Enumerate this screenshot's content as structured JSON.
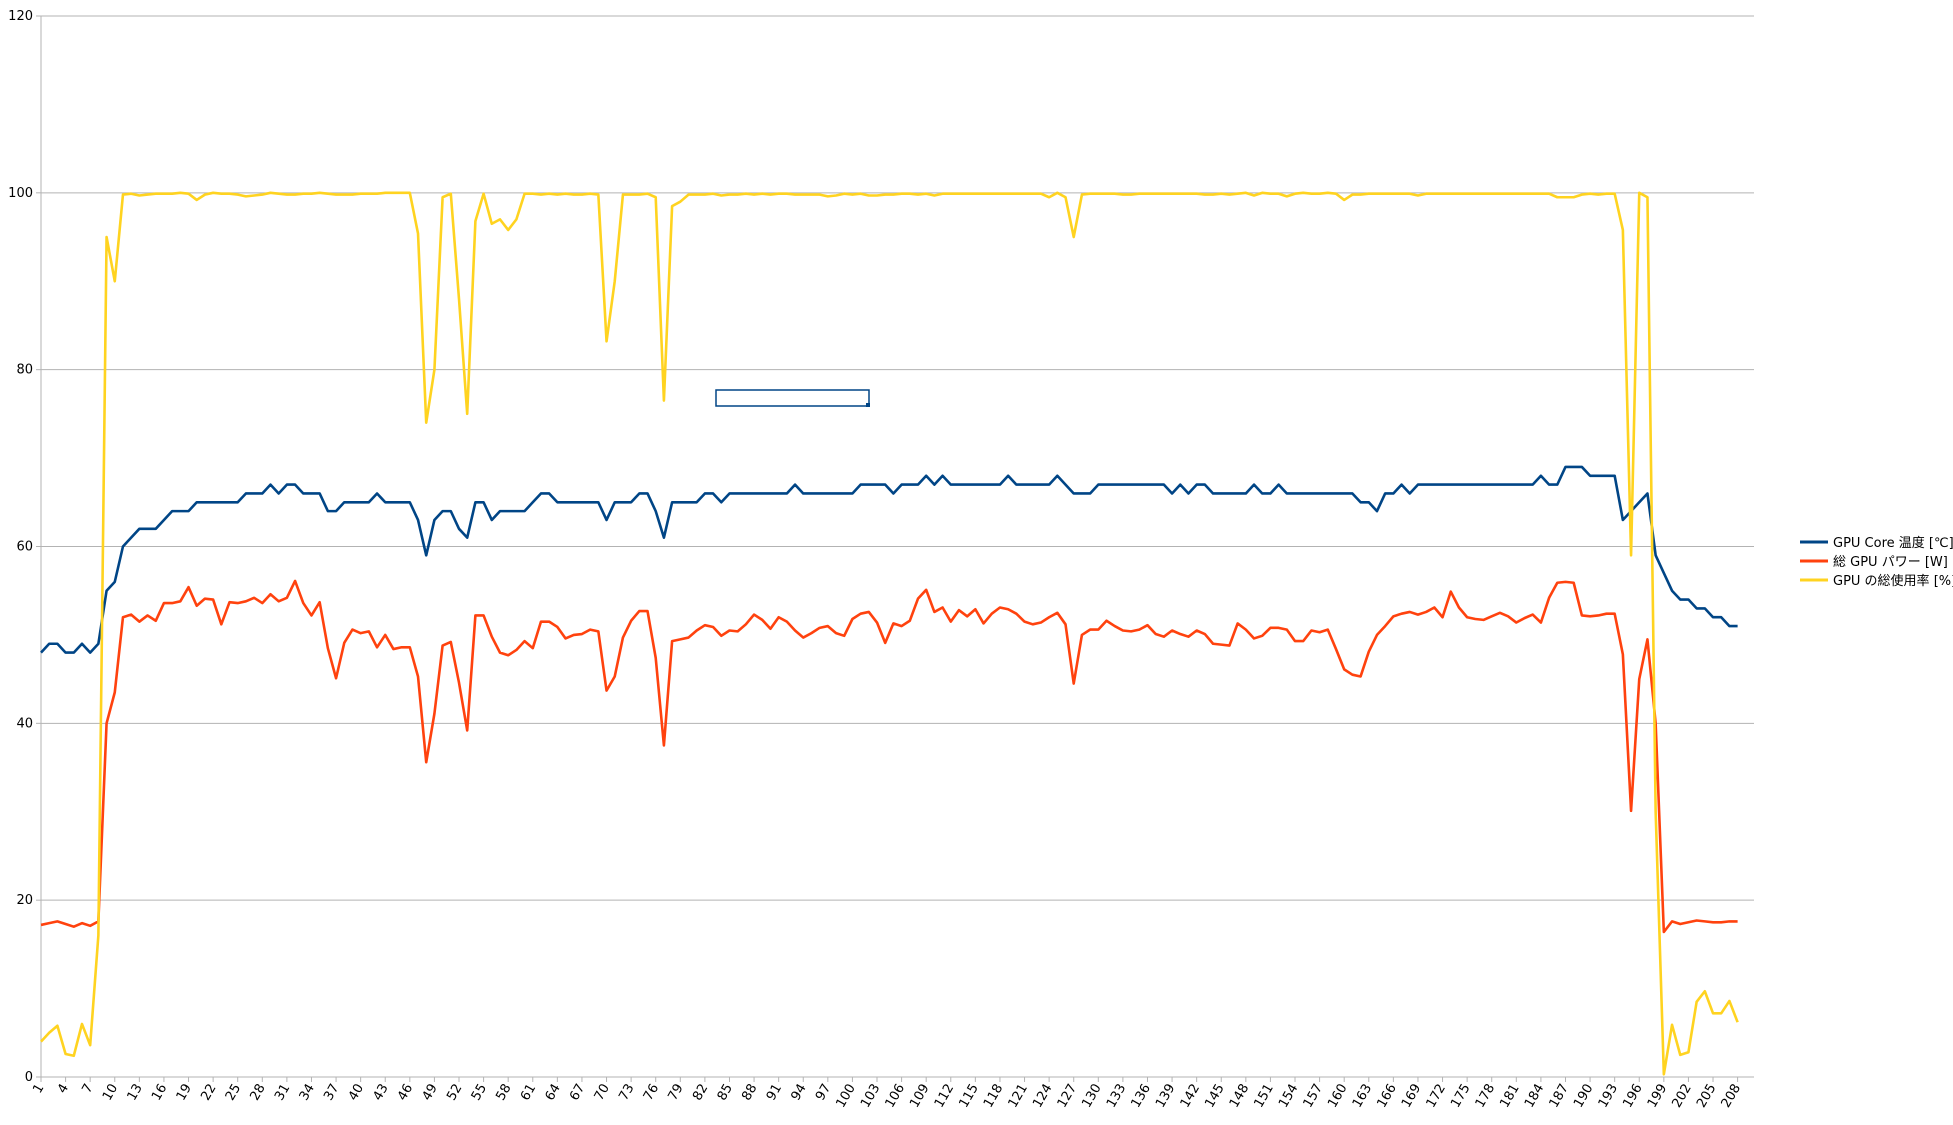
{
  "chart_data": {
    "type": "line",
    "x": [
      1,
      2,
      3,
      4,
      5,
      6,
      7,
      8,
      9,
      10,
      11,
      12,
      13,
      14,
      15,
      16,
      17,
      18,
      19,
      20,
      21,
      22,
      23,
      24,
      25,
      26,
      27,
      28,
      29,
      30,
      31,
      32,
      33,
      34,
      35,
      36,
      37,
      38,
      39,
      40,
      41,
      42,
      43,
      44,
      45,
      46,
      47,
      48,
      49,
      50,
      51,
      52,
      53,
      54,
      55,
      56,
      57,
      58,
      59,
      60,
      61,
      62,
      63,
      64,
      65,
      66,
      67,
      68,
      69,
      70,
      71,
      72,
      73,
      74,
      75,
      76,
      77,
      78,
      79,
      80,
      81,
      82,
      83,
      84,
      85,
      86,
      87,
      88,
      89,
      90,
      91,
      92,
      93,
      94,
      95,
      96,
      97,
      98,
      99,
      100,
      101,
      102,
      103,
      104,
      105,
      106,
      107,
      108,
      109,
      110,
      111,
      112,
      113,
      114,
      115,
      116,
      117,
      118,
      119,
      120,
      121,
      122,
      123,
      124,
      125,
      126,
      127,
      128,
      129,
      130,
      131,
      132,
      133,
      134,
      135,
      136,
      137,
      138,
      139,
      140,
      141,
      142,
      143,
      144,
      145,
      146,
      147,
      148,
      149,
      150,
      151,
      152,
      153,
      154,
      155,
      156,
      157,
      158,
      159,
      160,
      161,
      162,
      163,
      164,
      165,
      166,
      167,
      168,
      169,
      170,
      171,
      172,
      173,
      174,
      175,
      176,
      177,
      178,
      179,
      180,
      181,
      182,
      183,
      184,
      185,
      186,
      187,
      188,
      189,
      190,
      191,
      192,
      193,
      194,
      195,
      196,
      197,
      198,
      199,
      200,
      201,
      202,
      203,
      204,
      205,
      206,
      207,
      208
    ],
    "series": [
      {
        "name": "GPU Core  温度 [℃]",
        "color": "#004586",
        "values": [
          48,
          49,
          49,
          48,
          48,
          49,
          48,
          49,
          55,
          56,
          60,
          61,
          62,
          62,
          62,
          63,
          64,
          64,
          64,
          65,
          65,
          65,
          65,
          65,
          65,
          66,
          66,
          66,
          67,
          66,
          67,
          67,
          66,
          66,
          66,
          64,
          64,
          65,
          65,
          65,
          65,
          66,
          65,
          65,
          65,
          65,
          63,
          59,
          63,
          64,
          64,
          62,
          61,
          65,
          65,
          63,
          64,
          64,
          64,
          64,
          65,
          66,
          66,
          65,
          65,
          65,
          65,
          65,
          65,
          63,
          65,
          65,
          65,
          66,
          66,
          64,
          61,
          65,
          65,
          65,
          65,
          66,
          66,
          65,
          66,
          66,
          66,
          66,
          66,
          66,
          66,
          66,
          67,
          66,
          66,
          66,
          66,
          66,
          66,
          66,
          67,
          67,
          67,
          67,
          66,
          67,
          67,
          67,
          68,
          67,
          68,
          67,
          67,
          67,
          67,
          67,
          67,
          67,
          68,
          67,
          67,
          67,
          67,
          67,
          68,
          67,
          66,
          66,
          66,
          67,
          67,
          67,
          67,
          67,
          67,
          67,
          67,
          67,
          66,
          67,
          66,
          67,
          67,
          66,
          66,
          66,
          66,
          66,
          67,
          66,
          66,
          67,
          66,
          66,
          66,
          66,
          66,
          66,
          66,
          66,
          66,
          65,
          65,
          64,
          66,
          66,
          67,
          66,
          67,
          67,
          67,
          67,
          67,
          67,
          67,
          67,
          67,
          67,
          67,
          67,
          67,
          67,
          67,
          68,
          67,
          67,
          69,
          69,
          69,
          68,
          68,
          68,
          68,
          63,
          64,
          65,
          66,
          59,
          57,
          55,
          54,
          54,
          53,
          53,
          52,
          52,
          51,
          51
        ]
      },
      {
        "name": "総 GPU パワー [W]",
        "color": "#ff420e",
        "values": [
          17.2,
          17.4,
          17.6,
          17.3,
          17.0,
          17.4,
          17.1,
          17.6,
          40,
          43.5,
          52,
          52.3,
          51.5,
          52.2,
          51.6,
          53.6,
          53.6,
          53.8,
          55.4,
          53.3,
          54.1,
          54,
          51.2,
          53.7,
          53.6,
          53.8,
          54.2,
          53.6,
          54.6,
          53.8,
          54.2,
          56.1,
          53.6,
          52.2,
          53.7,
          48.5,
          45.1,
          49.1,
          50.6,
          50.2,
          50.4,
          48.6,
          50,
          48.4,
          48.6,
          48.6,
          45.3,
          35.6,
          41.1,
          48.8,
          49.2,
          44.6,
          39.2,
          52.2,
          52.2,
          49.8,
          48,
          47.7,
          48.3,
          49.3,
          48.5,
          51.5,
          51.5,
          50.9,
          49.6,
          50,
          50.1,
          50.6,
          50.4,
          43.7,
          45.3,
          49.7,
          51.6,
          52.7,
          52.7,
          47.4,
          37.5,
          49.3,
          49.5,
          49.7,
          50.5,
          51.1,
          50.9,
          49.9,
          50.5,
          50.4,
          51.2,
          52.3,
          51.7,
          50.7,
          52,
          51.5,
          50.5,
          49.7,
          50.2,
          50.8,
          51,
          50.2,
          49.9,
          51.8,
          52.4,
          52.6,
          51.4,
          49.1,
          51.3,
          51,
          51.6,
          54.1,
          55.1,
          52.6,
          53.1,
          51.5,
          52.8,
          52.1,
          52.9,
          51.3,
          52.4,
          53.1,
          52.9,
          52.4,
          51.5,
          51.2,
          51.4,
          52,
          52.5,
          51.2,
          44.5,
          50,
          50.6,
          50.6,
          51.6,
          51,
          50.5,
          50.4,
          50.6,
          51.1,
          50.1,
          49.8,
          50.5,
          50.1,
          49.8,
          50.5,
          50.1,
          49,
          48.9,
          48.8,
          51.3,
          50.6,
          49.6,
          49.9,
          50.8,
          50.8,
          50.6,
          49.3,
          49.3,
          50.5,
          50.3,
          50.6,
          48.4,
          46.1,
          45.5,
          45.3,
          48.1,
          50,
          51,
          52.1,
          52.4,
          52.6,
          52.3,
          52.6,
          53.1,
          52,
          54.9,
          53.1,
          52,
          51.8,
          51.7,
          52.1,
          52.5,
          52.1,
          51.4,
          51.9,
          52.3,
          51.4,
          54.2,
          55.9,
          56,
          55.9,
          52.2,
          52.1,
          52.2,
          52.4,
          52.4,
          47.8,
          30.1,
          45,
          49.5,
          40,
          16.4,
          17.6,
          17.3,
          17.5,
          17.7,
          17.6,
          17.5,
          17.5,
          17.6,
          17.6
        ]
      },
      {
        "name": "GPU の総使用率 [%]",
        "color": "#ffd320",
        "values": [
          4,
          5,
          5.8,
          2.6,
          2.4,
          6,
          3.6,
          16,
          95,
          90,
          99.8,
          99.9,
          99.7,
          99.8,
          99.9,
          99.9,
          99.9,
          100,
          99.9,
          99.2,
          99.8,
          100,
          99.9,
          99.9,
          99.8,
          99.6,
          99.7,
          99.8,
          100,
          99.9,
          99.8,
          99.8,
          99.9,
          99.9,
          100,
          99.9,
          99.8,
          99.8,
          99.8,
          99.9,
          99.9,
          99.9,
          100,
          100,
          100,
          100,
          95.4,
          74,
          80,
          99.5,
          99.9,
          88,
          75,
          96.8,
          99.9,
          96.5,
          97,
          95.8,
          97,
          99.9,
          99.9,
          99.8,
          99.9,
          99.8,
          99.9,
          99.8,
          99.8,
          99.9,
          99.8,
          83.2,
          90,
          99.8,
          99.8,
          99.8,
          99.9,
          99.5,
          76.5,
          98.5,
          99,
          99.8,
          99.8,
          99.8,
          99.9,
          99.7,
          99.8,
          99.8,
          99.9,
          99.8,
          99.9,
          99.8,
          99.9,
          99.9,
          99.8,
          99.8,
          99.8,
          99.8,
          99.6,
          99.7,
          99.9,
          99.8,
          99.9,
          99.7,
          99.7,
          99.8,
          99.8,
          99.9,
          99.9,
          99.8,
          99.9,
          99.7,
          99.9,
          99.9,
          99.9,
          99.9,
          99.9,
          99.9,
          99.9,
          99.9,
          99.9,
          99.9,
          99.9,
          99.9,
          99.9,
          99.5,
          100,
          99.5,
          95,
          99.8,
          99.9,
          99.9,
          99.9,
          99.9,
          99.8,
          99.8,
          99.9,
          99.9,
          99.9,
          99.9,
          99.9,
          99.9,
          99.9,
          99.9,
          99.8,
          99.8,
          99.9,
          99.8,
          99.9,
          100,
          99.7,
          100,
          99.9,
          99.9,
          99.6,
          99.9,
          100,
          99.9,
          99.9,
          100,
          99.9,
          99.2,
          99.8,
          99.8,
          99.9,
          99.9,
          99.9,
          99.9,
          99.9,
          99.9,
          99.7,
          99.9,
          99.9,
          99.9,
          99.9,
          99.9,
          99.9,
          99.9,
          99.9,
          99.9,
          99.9,
          99.9,
          99.9,
          99.9,
          99.9,
          99.9,
          99.9,
          99.5,
          99.5,
          99.5,
          99.8,
          99.9,
          99.8,
          99.9,
          99.9,
          95.8,
          59,
          100,
          99.5,
          30,
          0.3,
          5.9,
          2.5,
          2.8,
          8.5,
          9.7,
          7.2,
          7.2,
          8.6,
          6.2
        ]
      }
    ],
    "xlim": [
      1,
      210
    ],
    "xticks": [
      1,
      4,
      7,
      10,
      13,
      16,
      19,
      22,
      25,
      28,
      31,
      34,
      37,
      40,
      43,
      46,
      49,
      52,
      55,
      58,
      61,
      64,
      67,
      70,
      73,
      76,
      79,
      82,
      85,
      88,
      91,
      94,
      97,
      100,
      103,
      106,
      109,
      112,
      115,
      118,
      121,
      124,
      127,
      130,
      133,
      136,
      139,
      142,
      145,
      148,
      151,
      154,
      157,
      160,
      163,
      166,
      169,
      172,
      175,
      178,
      181,
      184,
      187,
      190,
      193,
      196,
      199,
      202,
      205,
      208
    ],
    "ylim": [
      0,
      120
    ],
    "yticks": [
      0,
      20,
      40,
      60,
      80,
      100,
      120
    ],
    "grid": true,
    "legend": "right"
  }
}
